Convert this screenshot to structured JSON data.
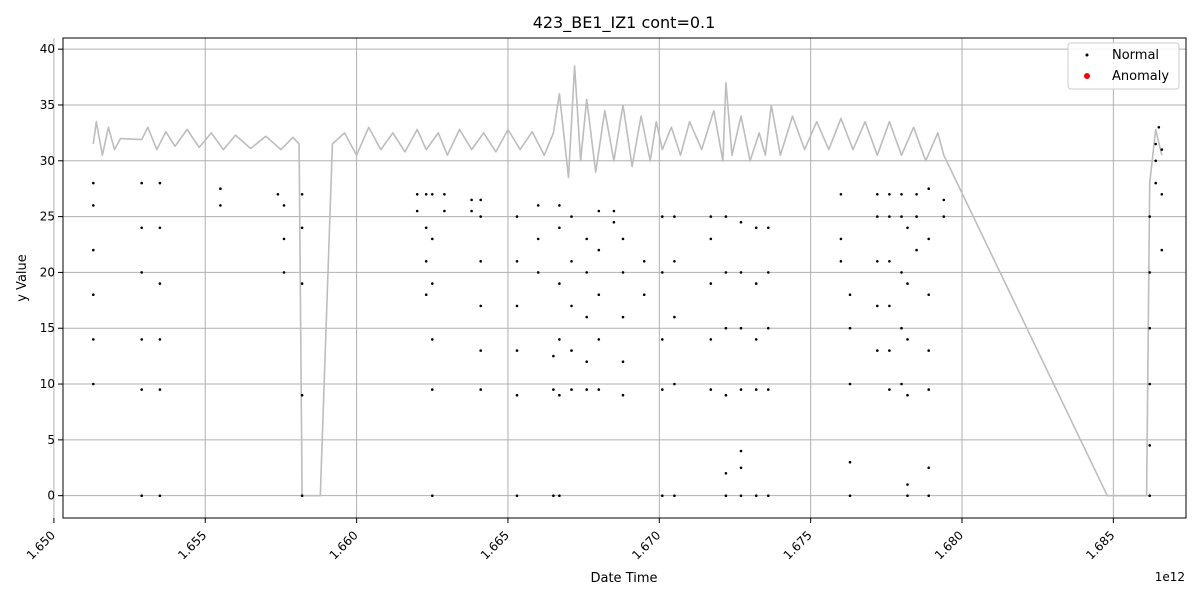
{
  "chart_data": {
    "type": "scatter",
    "title": "423_BE1_IZ1 cont=0.1",
    "xlabel": "Date Time",
    "ylabel": "y Value",
    "x_offset_label": "1e12",
    "xlim": [
      1.6503,
      1.6874
    ],
    "ylim": [
      -2,
      41
    ],
    "x_ticks": [
      1.65,
      1.655,
      1.66,
      1.665,
      1.67,
      1.675,
      1.68,
      1.685
    ],
    "x_tick_labels": [
      "1.650",
      "1.655",
      "1.660",
      "1.665",
      "1.670",
      "1.675",
      "1.680",
      "1.685"
    ],
    "y_ticks": [
      0,
      5,
      10,
      15,
      20,
      25,
      30,
      35,
      40
    ],
    "y_tick_labels": [
      "0",
      "5",
      "10",
      "15",
      "20",
      "25",
      "30",
      "35",
      "40"
    ],
    "grid": true,
    "legend_position": "top-right",
    "colors": {
      "line": "#bdbdbd",
      "normal": "#000000",
      "anomaly": "#ff0000",
      "grid": "#b0b0b0"
    },
    "series": [
      {
        "name": "line",
        "kind": "line",
        "points": [
          [
            1.6513,
            31.5
          ],
          [
            1.6514,
            33.5
          ],
          [
            1.6516,
            30.5
          ],
          [
            1.6518,
            33.0
          ],
          [
            1.652,
            31.0
          ],
          [
            1.6522,
            32.0
          ],
          [
            1.6529,
            31.9
          ],
          [
            1.6531,
            33.0
          ],
          [
            1.6534,
            31.0
          ],
          [
            1.6537,
            32.6
          ],
          [
            1.654,
            31.3
          ],
          [
            1.6544,
            32.8
          ],
          [
            1.6548,
            31.2
          ],
          [
            1.6552,
            32.5
          ],
          [
            1.6556,
            31.0
          ],
          [
            1.656,
            32.3
          ],
          [
            1.6565,
            31.1
          ],
          [
            1.657,
            32.2
          ],
          [
            1.6575,
            31.0
          ],
          [
            1.6579,
            32.1
          ],
          [
            1.6581,
            31.5
          ],
          [
            1.6582,
            0.0
          ],
          [
            1.6587,
            0.0
          ],
          [
            1.6588,
            0.0
          ],
          [
            1.6592,
            31.5
          ],
          [
            1.6596,
            32.5
          ],
          [
            1.66,
            30.5
          ],
          [
            1.6604,
            33.0
          ],
          [
            1.6608,
            31.0
          ],
          [
            1.6612,
            32.5
          ],
          [
            1.6616,
            30.8
          ],
          [
            1.662,
            32.8
          ],
          [
            1.6623,
            31.0
          ],
          [
            1.6627,
            32.5
          ],
          [
            1.663,
            30.5
          ],
          [
            1.6634,
            32.8
          ],
          [
            1.6638,
            31.0
          ],
          [
            1.6642,
            32.5
          ],
          [
            1.6646,
            30.8
          ],
          [
            1.665,
            32.8
          ],
          [
            1.6654,
            31.0
          ],
          [
            1.6658,
            32.6
          ],
          [
            1.6662,
            30.5
          ],
          [
            1.6665,
            32.5
          ],
          [
            1.6667,
            36.0
          ],
          [
            1.667,
            28.5
          ],
          [
            1.6672,
            38.5
          ],
          [
            1.6674,
            30.0
          ],
          [
            1.6676,
            35.5
          ],
          [
            1.6679,
            29.0
          ],
          [
            1.6682,
            34.5
          ],
          [
            1.6685,
            30.0
          ],
          [
            1.6688,
            35.0
          ],
          [
            1.6691,
            29.5
          ],
          [
            1.6694,
            34.0
          ],
          [
            1.6697,
            30.0
          ],
          [
            1.6699,
            33.5
          ],
          [
            1.6701,
            31.0
          ],
          [
            1.6704,
            33.0
          ],
          [
            1.6707,
            30.5
          ],
          [
            1.671,
            33.5
          ],
          [
            1.6714,
            31.0
          ],
          [
            1.6718,
            34.5
          ],
          [
            1.6721,
            30.0
          ],
          [
            1.6722,
            37.0
          ],
          [
            1.6724,
            30.5
          ],
          [
            1.6727,
            34.0
          ],
          [
            1.673,
            30.0
          ],
          [
            1.6733,
            32.5
          ],
          [
            1.6735,
            30.5
          ],
          [
            1.6737,
            35.0
          ],
          [
            1.674,
            30.5
          ],
          [
            1.6744,
            34.0
          ],
          [
            1.6748,
            31.0
          ],
          [
            1.6752,
            33.5
          ],
          [
            1.6756,
            31.0
          ],
          [
            1.676,
            33.8
          ],
          [
            1.6764,
            31.0
          ],
          [
            1.6768,
            33.5
          ],
          [
            1.6772,
            30.5
          ],
          [
            1.6776,
            33.5
          ],
          [
            1.678,
            30.5
          ],
          [
            1.6784,
            33.0
          ],
          [
            1.6788,
            30.0
          ],
          [
            1.6792,
            32.5
          ],
          [
            1.6794,
            30.5
          ],
          [
            1.6848,
            0.0
          ],
          [
            1.6861,
            0.0
          ],
          [
            1.6862,
            28.0
          ],
          [
            1.6864,
            32.8
          ],
          [
            1.6866,
            30.5
          ]
        ]
      },
      {
        "name": "Normal",
        "kind": "scatter",
        "points": [
          [
            1.6513,
            10
          ],
          [
            1.6513,
            14
          ],
          [
            1.6513,
            18
          ],
          [
            1.6513,
            22
          ],
          [
            1.6513,
            26
          ],
          [
            1.6513,
            28
          ],
          [
            1.6529,
            0
          ],
          [
            1.6529,
            9.5
          ],
          [
            1.6529,
            14
          ],
          [
            1.6529,
            20
          ],
          [
            1.6529,
            24
          ],
          [
            1.6529,
            28
          ],
          [
            1.6535,
            0
          ],
          [
            1.6535,
            9.5
          ],
          [
            1.6535,
            14
          ],
          [
            1.6535,
            19
          ],
          [
            1.6535,
            24
          ],
          [
            1.6535,
            28
          ],
          [
            1.6555,
            26
          ],
          [
            1.6555,
            27.5
          ],
          [
            1.6574,
            27
          ],
          [
            1.6576,
            20
          ],
          [
            1.6576,
            23
          ],
          [
            1.6576,
            26
          ],
          [
            1.6582,
            0
          ],
          [
            1.6582,
            9
          ],
          [
            1.6582,
            19
          ],
          [
            1.6582,
            24
          ],
          [
            1.6582,
            27
          ],
          [
            1.662,
            25.5
          ],
          [
            1.662,
            27
          ],
          [
            1.6623,
            18
          ],
          [
            1.6623,
            21
          ],
          [
            1.6623,
            24
          ],
          [
            1.6623,
            27
          ],
          [
            1.6625,
            0
          ],
          [
            1.6625,
            9.5
          ],
          [
            1.6625,
            14
          ],
          [
            1.6625,
            19
          ],
          [
            1.6625,
            23
          ],
          [
            1.6625,
            27
          ],
          [
            1.6629,
            25.5
          ],
          [
            1.6629,
            27
          ],
          [
            1.6638,
            25.5
          ],
          [
            1.6638,
            26.5
          ],
          [
            1.6641,
            9.5
          ],
          [
            1.6641,
            13
          ],
          [
            1.6641,
            17
          ],
          [
            1.6641,
            21
          ],
          [
            1.6641,
            25
          ],
          [
            1.6641,
            26.5
          ],
          [
            1.6653,
            0
          ],
          [
            1.6653,
            9
          ],
          [
            1.6653,
            13
          ],
          [
            1.6653,
            17
          ],
          [
            1.6653,
            21
          ],
          [
            1.6653,
            25
          ],
          [
            1.666,
            20
          ],
          [
            1.666,
            23
          ],
          [
            1.666,
            26
          ],
          [
            1.6665,
            0
          ],
          [
            1.6665,
            9.5
          ],
          [
            1.6665,
            12.5
          ],
          [
            1.6667,
            0
          ],
          [
            1.6667,
            9
          ],
          [
            1.6667,
            14
          ],
          [
            1.6667,
            19
          ],
          [
            1.6667,
            24
          ],
          [
            1.6667,
            26
          ],
          [
            1.6671,
            9.5
          ],
          [
            1.6671,
            13
          ],
          [
            1.6671,
            17
          ],
          [
            1.6671,
            21
          ],
          [
            1.6671,
            25
          ],
          [
            1.6676,
            9.5
          ],
          [
            1.6676,
            12
          ],
          [
            1.6676,
            16
          ],
          [
            1.6676,
            20
          ],
          [
            1.6676,
            23
          ],
          [
            1.668,
            9.5
          ],
          [
            1.668,
            14
          ],
          [
            1.668,
            18
          ],
          [
            1.668,
            22
          ],
          [
            1.668,
            25.5
          ],
          [
            1.6685,
            24.5
          ],
          [
            1.6685,
            25.5
          ],
          [
            1.6688,
            9
          ],
          [
            1.6688,
            12
          ],
          [
            1.6688,
            16
          ],
          [
            1.6688,
            20
          ],
          [
            1.6688,
            23
          ],
          [
            1.6695,
            18
          ],
          [
            1.6695,
            21
          ],
          [
            1.6701,
            0
          ],
          [
            1.6701,
            9.5
          ],
          [
            1.6701,
            14
          ],
          [
            1.6701,
            20
          ],
          [
            1.6701,
            25
          ],
          [
            1.6705,
            0
          ],
          [
            1.6705,
            10
          ],
          [
            1.6705,
            16
          ],
          [
            1.6705,
            21
          ],
          [
            1.6705,
            25
          ],
          [
            1.6717,
            9.5
          ],
          [
            1.6717,
            14
          ],
          [
            1.6717,
            19
          ],
          [
            1.6717,
            23
          ],
          [
            1.6717,
            25
          ],
          [
            1.6722,
            0
          ],
          [
            1.6722,
            2
          ],
          [
            1.6722,
            9
          ],
          [
            1.6722,
            15
          ],
          [
            1.6722,
            20
          ],
          [
            1.6722,
            25
          ],
          [
            1.6727,
            0
          ],
          [
            1.6727,
            2.5
          ],
          [
            1.6727,
            4
          ],
          [
            1.6727,
            9.5
          ],
          [
            1.6727,
            15
          ],
          [
            1.6727,
            20
          ],
          [
            1.6727,
            24.5
          ],
          [
            1.6732,
            0
          ],
          [
            1.6732,
            9.5
          ],
          [
            1.6732,
            14
          ],
          [
            1.6732,
            19
          ],
          [
            1.6732,
            24
          ],
          [
            1.6736,
            0
          ],
          [
            1.6736,
            9.5
          ],
          [
            1.6736,
            15
          ],
          [
            1.6736,
            20
          ],
          [
            1.6736,
            24
          ],
          [
            1.676,
            21
          ],
          [
            1.676,
            23
          ],
          [
            1.676,
            27
          ],
          [
            1.6763,
            0
          ],
          [
            1.6763,
            3
          ],
          [
            1.6763,
            10
          ],
          [
            1.6763,
            15
          ],
          [
            1.6763,
            18
          ],
          [
            1.6772,
            13
          ],
          [
            1.6772,
            17
          ],
          [
            1.6772,
            21
          ],
          [
            1.6772,
            25
          ],
          [
            1.6772,
            27
          ],
          [
            1.6776,
            9.5
          ],
          [
            1.6776,
            13
          ],
          [
            1.6776,
            17
          ],
          [
            1.6776,
            21
          ],
          [
            1.6776,
            25
          ],
          [
            1.6776,
            27
          ],
          [
            1.678,
            10
          ],
          [
            1.678,
            15
          ],
          [
            1.678,
            20
          ],
          [
            1.678,
            25
          ],
          [
            1.678,
            27
          ],
          [
            1.6782,
            0
          ],
          [
            1.6782,
            1
          ],
          [
            1.6782,
            9
          ],
          [
            1.6782,
            14
          ],
          [
            1.6782,
            19
          ],
          [
            1.6782,
            24
          ],
          [
            1.6785,
            22
          ],
          [
            1.6785,
            25
          ],
          [
            1.6785,
            27
          ],
          [
            1.6789,
            0
          ],
          [
            1.6789,
            2.5
          ],
          [
            1.6789,
            9.5
          ],
          [
            1.6789,
            13
          ],
          [
            1.6789,
            18
          ],
          [
            1.6789,
            23
          ],
          [
            1.6789,
            27.5
          ],
          [
            1.6794,
            25
          ],
          [
            1.6794,
            26.5
          ],
          [
            1.6862,
            0
          ],
          [
            1.6862,
            4.5
          ],
          [
            1.6862,
            10
          ],
          [
            1.6862,
            15
          ],
          [
            1.6862,
            20
          ],
          [
            1.6862,
            25
          ],
          [
            1.6864,
            28
          ],
          [
            1.6864,
            30
          ],
          [
            1.6864,
            31.5
          ],
          [
            1.6865,
            33
          ],
          [
            1.6866,
            27
          ],
          [
            1.6866,
            22
          ],
          [
            1.6866,
            31
          ]
        ]
      },
      {
        "name": "Anomaly",
        "kind": "scatter",
        "points": []
      }
    ]
  }
}
